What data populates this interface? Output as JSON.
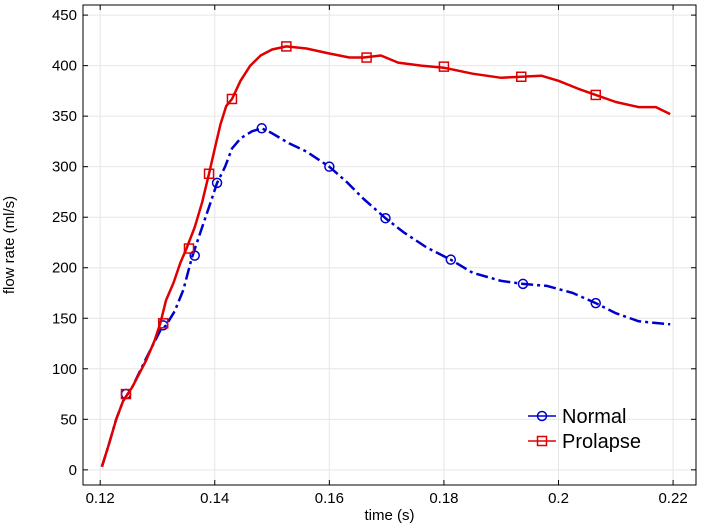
{
  "chart_data": {
    "type": "line",
    "title": "",
    "xlabel": "time (s)",
    "ylabel": "flow rate (ml/s)",
    "xlim": [
      0.117,
      0.224
    ],
    "ylim": [
      -15,
      460
    ],
    "xticks": [
      0.12,
      0.14,
      0.16,
      0.18,
      0.2,
      0.22
    ],
    "xtick_labels": [
      "0.12",
      "0.14",
      "0.16",
      "0.18",
      "0.2",
      "0.22"
    ],
    "yticks": [
      0,
      50,
      100,
      150,
      200,
      250,
      300,
      350,
      400,
      450
    ],
    "ytick_labels": [
      "0",
      "50",
      "100",
      "150",
      "200",
      "250",
      "300",
      "350",
      "400",
      "450"
    ],
    "grid": true,
    "legend_position": "bottom-right",
    "series": [
      {
        "name": "Normal",
        "color": "#0000cc",
        "line_style": "dash-dot",
        "marker": "circle",
        "x": [
          0.1203,
          0.1215,
          0.1228,
          0.124,
          0.1256,
          0.128,
          0.1305,
          0.1315,
          0.133,
          0.1345,
          0.136,
          0.1375,
          0.139,
          0.1404,
          0.1418,
          0.143,
          0.1445,
          0.1465,
          0.1482,
          0.15,
          0.153,
          0.156,
          0.16,
          0.163,
          0.166,
          0.1698,
          0.173,
          0.177,
          0.1812,
          0.185,
          0.19,
          0.1938,
          0.198,
          0.2025,
          0.2065,
          0.21,
          0.214,
          0.2195
        ],
        "y": [
          3,
          25,
          50,
          68,
          82,
          110,
          138,
          143,
          157,
          178,
          210,
          235,
          260,
          284,
          300,
          318,
          328,
          335,
          338,
          333,
          323,
          315,
          300,
          285,
          268,
          249,
          235,
          220,
          208,
          195,
          187,
          184,
          182,
          175,
          165,
          155,
          147,
          144
        ],
        "marker_x": [
          0.1245,
          0.131,
          0.1365,
          0.1404,
          0.1482,
          0.16,
          0.1698,
          0.1812,
          0.1938,
          0.2065
        ],
        "marker_y": [
          75,
          143,
          212,
          284,
          338,
          300,
          249,
          208,
          184,
          165
        ]
      },
      {
        "name": "Prolapse",
        "color": "#e00000",
        "line_style": "solid",
        "marker": "square",
        "x": [
          0.1203,
          0.1215,
          0.1228,
          0.124,
          0.1256,
          0.128,
          0.1295,
          0.1305,
          0.1315,
          0.1328,
          0.134,
          0.135,
          0.1365,
          0.1378,
          0.139,
          0.14,
          0.141,
          0.142,
          0.143,
          0.1445,
          0.1462,
          0.148,
          0.15,
          0.1525,
          0.156,
          0.16,
          0.1635,
          0.166,
          0.169,
          0.172,
          0.176,
          0.18,
          0.185,
          0.19,
          0.1935,
          0.197,
          0.2,
          0.2035,
          0.2065,
          0.21,
          0.214,
          0.217,
          0.2195
        ],
        "y": [
          3,
          25,
          50,
          68,
          82,
          108,
          128,
          145,
          168,
          185,
          205,
          218,
          240,
          265,
          293,
          318,
          342,
          360,
          367,
          385,
          400,
          410,
          416,
          419,
          417,
          412,
          408,
          408,
          410,
          403,
          400,
          398,
          392,
          388,
          389,
          390,
          385,
          377,
          371,
          364,
          359,
          359,
          352
        ],
        "marker_x": [
          0.1245,
          0.131,
          0.1355,
          0.139,
          0.143,
          0.1525,
          0.1665,
          0.18,
          0.1935,
          0.2065
        ],
        "marker_y": [
          75,
          145,
          219,
          293,
          367,
          419,
          408,
          399,
          389,
          371
        ]
      }
    ]
  }
}
